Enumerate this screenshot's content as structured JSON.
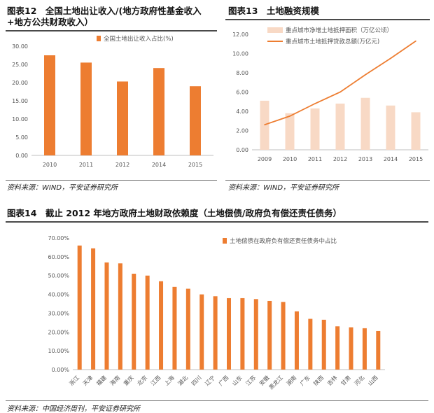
{
  "panels": {
    "p12": {
      "title": "图表12　全国土地出让收入/(地方政府性基金收入+地方公共财政收入）",
      "source": "资料来源：WIND，平安证券研究所"
    },
    "p13": {
      "title": "图表13　土地融资规模",
      "source": "资料来源：WIND，平安证券研究所"
    },
    "p14": {
      "title": "图表14　截止 2012 年地方政府土地财政依赖度（土地偿债/政府负有偿还责任债务）",
      "source": "资料来源：中国经济周刊，平安证券研究所"
    }
  },
  "paragraph_mark": "↵",
  "colors": {
    "orange": "#ED7D31",
    "light_peach": "#F8D9C5",
    "axis": "#bfbfbf",
    "text": "#555555"
  },
  "chart_data": [
    {
      "id": "chart12",
      "type": "bar",
      "categories": [
        "2010",
        "2011",
        "2012",
        "2014",
        "2015"
      ],
      "series": [
        {
          "name": "全国土地出让收入占比(%)",
          "values": [
            27.5,
            25.5,
            20.3,
            24.0,
            19.0
          ]
        }
      ],
      "yticks": [
        "0.00",
        "5.00",
        "10.00",
        "15.00",
        "20.00",
        "25.00",
        "30.00"
      ],
      "ylim": [
        0,
        30
      ],
      "legend_position": "top-right"
    },
    {
      "id": "chart13",
      "type": "bar+line",
      "categories": [
        "2009",
        "2010",
        "2011",
        "2012",
        "2013",
        "2014",
        "2015"
      ],
      "series": [
        {
          "name": "重点城市净增土地抵押面积（万亿公顷）",
          "type": "bar",
          "values": [
            5.1,
            3.8,
            4.3,
            4.8,
            5.4,
            4.6,
            3.9
          ]
        },
        {
          "name": "重点城市土地抵押贷款总额(万亿元)",
          "type": "line",
          "values": [
            2.6,
            3.5,
            4.8,
            6.0,
            7.8,
            9.5,
            11.3
          ]
        }
      ],
      "yticks": [
        "0.00",
        "2.00",
        "4.00",
        "6.00",
        "8.00",
        "10.00",
        "12.00"
      ],
      "ylim": [
        0,
        12
      ],
      "legend_position": "top-left"
    },
    {
      "id": "chart14",
      "type": "bar",
      "categories": [
        "浙江",
        "天津",
        "福建",
        "海南",
        "重庆",
        "北京",
        "江西",
        "上海",
        "湖北",
        "四川",
        "辽宁",
        "广西",
        "山东",
        "江苏",
        "安徽",
        "黑龙江",
        "湖南",
        "广东",
        "陕西",
        "吉林",
        "甘肃",
        "河北",
        "山西"
      ],
      "series": [
        {
          "name": "土地偿债在政府负有偿还责任债务中占比",
          "values": [
            66.0,
            64.5,
            57.0,
            56.5,
            51.0,
            50.0,
            47.0,
            44.0,
            43.0,
            40.0,
            39.0,
            38.0,
            38.0,
            37.5,
            36.5,
            36.0,
            31.0,
            27.0,
            26.5,
            23.0,
            22.5,
            22.0,
            20.5
          ]
        }
      ],
      "yticks": [
        "0.00%",
        "10.00%",
        "20.00%",
        "30.00%",
        "40.00%",
        "50.00%",
        "60.00%",
        "70.00%"
      ],
      "ylim": [
        0,
        70
      ],
      "legend_position": "top-right"
    }
  ]
}
